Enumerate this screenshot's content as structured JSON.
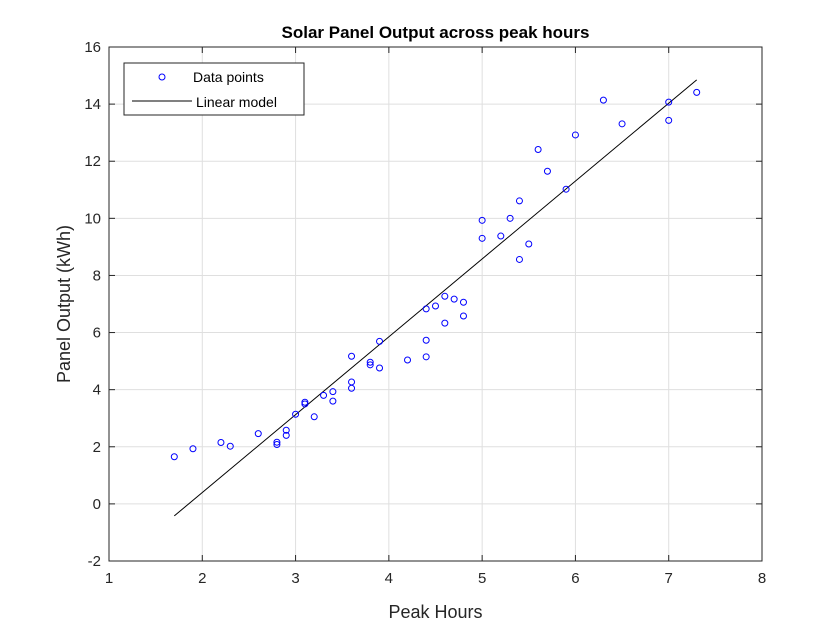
{
  "chart_data": {
    "type": "scatter",
    "title": "Solar Panel Output across peak hours",
    "xlabel": "Peak Hours",
    "ylabel": "Panel Output (kWh)",
    "xlim": [
      1,
      8
    ],
    "ylim": [
      -2,
      16
    ],
    "xticks": [
      "1",
      "2",
      "3",
      "4",
      "5",
      "6",
      "7",
      "8"
    ],
    "yticks": [
      "-2",
      "0",
      "2",
      "4",
      "6",
      "8",
      "10",
      "12",
      "14",
      "16"
    ],
    "grid": true,
    "legend_position": "top-left",
    "series": [
      {
        "name": "Data points",
        "kind": "scatter",
        "marker": "circle",
        "color": "#0000ff",
        "x": [
          1.7,
          1.9,
          2.2,
          2.3,
          2.6,
          2.8,
          2.8,
          2.9,
          2.9,
          3.0,
          3.1,
          3.1,
          3.2,
          3.3,
          3.4,
          3.4,
          3.6,
          3.6,
          3.6,
          3.8,
          3.8,
          3.9,
          3.9,
          4.2,
          4.4,
          4.4,
          4.4,
          4.5,
          4.6,
          4.6,
          4.7,
          4.8,
          4.8,
          5.0,
          5.0,
          5.2,
          5.3,
          5.4,
          5.4,
          5.5,
          5.6,
          5.7,
          5.9,
          6.0,
          6.3,
          6.5,
          7.0,
          7.0,
          7.3
        ],
        "y": [
          1.65,
          1.93,
          2.15,
          2.02,
          2.46,
          2.08,
          2.16,
          2.58,
          2.4,
          3.14,
          3.5,
          3.56,
          3.05,
          3.8,
          3.6,
          3.93,
          4.05,
          4.27,
          5.17,
          4.87,
          4.96,
          4.76,
          5.69,
          5.04,
          5.73,
          5.15,
          6.83,
          6.93,
          7.27,
          6.33,
          7.17,
          6.58,
          7.06,
          9.93,
          9.3,
          9.38,
          10.0,
          8.56,
          10.61,
          9.1,
          12.41,
          11.65,
          11.02,
          12.92,
          14.14,
          13.31,
          14.07,
          13.43,
          14.41
        ]
      },
      {
        "name": "Linear model",
        "kind": "line",
        "color": "#000000",
        "x": [
          1.7,
          7.3
        ],
        "y": [
          -0.42,
          14.85
        ]
      }
    ]
  }
}
